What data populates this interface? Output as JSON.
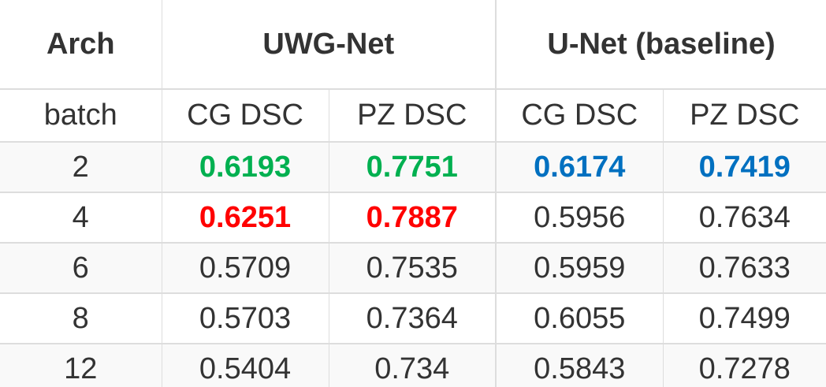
{
  "header": {
    "arch_label": "Arch",
    "groups": [
      "UWG-Net",
      "U-Net (baseline)"
    ]
  },
  "subheader": {
    "batch_label": "batch",
    "columns": [
      "CG DSC",
      "PZ DSC",
      "CG DSC",
      "PZ DSC"
    ]
  },
  "rows": [
    {
      "batch": "2",
      "values": [
        "0.6193",
        "0.7751",
        "0.6174",
        "0.7419"
      ],
      "highlight": [
        "green",
        "green",
        "blue",
        "blue"
      ]
    },
    {
      "batch": "4",
      "values": [
        "0.6251",
        "0.7887",
        "0.5956",
        "0.7634"
      ],
      "highlight": [
        "red",
        "red",
        "",
        ""
      ]
    },
    {
      "batch": "6",
      "values": [
        "0.5709",
        "0.7535",
        "0.5959",
        "0.7633"
      ],
      "highlight": [
        "",
        "",
        "",
        ""
      ]
    },
    {
      "batch": "8",
      "values": [
        "0.5703",
        "0.7364",
        "0.6055",
        "0.7499"
      ],
      "highlight": [
        "",
        "",
        "",
        ""
      ]
    },
    {
      "batch": "12",
      "values": [
        "0.5404",
        "0.734",
        "0.5843",
        "0.7278"
      ],
      "highlight": [
        "",
        "",
        "",
        ""
      ]
    }
  ],
  "colors": {
    "green": "#00b050",
    "red": "#ff0000",
    "blue": "#0070c0",
    "text": "#333333",
    "border": "#dddddd",
    "stripe": "#f9f9f9"
  }
}
